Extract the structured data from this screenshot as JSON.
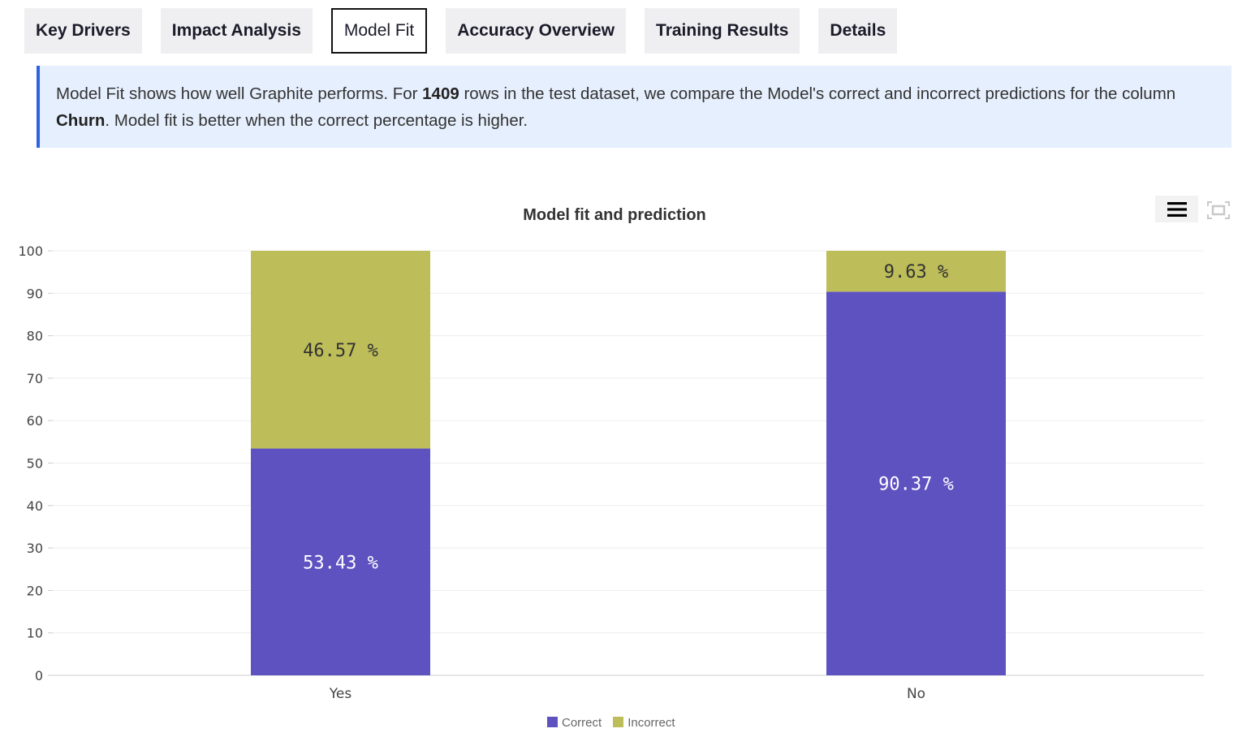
{
  "tabs": [
    {
      "label": "Key Drivers",
      "active": false
    },
    {
      "label": "Impact Analysis",
      "active": false
    },
    {
      "label": "Model Fit",
      "active": true
    },
    {
      "label": "Accuracy Overview",
      "active": false
    },
    {
      "label": "Training Results",
      "active": false
    },
    {
      "label": "Details",
      "active": false
    }
  ],
  "info": {
    "p1": "Model Fit shows how well Graphite performs. For ",
    "rows": "1409",
    "p2": " rows in the test dataset, we compare the Model's correct and incorrect predictions for the column ",
    "column": "Churn",
    "p3": ". Model fit is better when the correct percentage is higher."
  },
  "toolbar": {
    "menu_icon": "hamburger-menu-icon",
    "fullscreen_icon": "fullscreen-icon"
  },
  "colors": {
    "correct": "#5e52c0",
    "incorrect": "#bdbd5a",
    "accent": "#2f62e0"
  },
  "chart_data": {
    "type": "bar",
    "stacked": true,
    "title": "Model fit and prediction",
    "categories": [
      "Yes",
      "No"
    ],
    "series": [
      {
        "name": "Correct",
        "values": [
          53.43,
          90.37
        ],
        "labels": [
          "53.43 %",
          "90.37 %"
        ]
      },
      {
        "name": "Incorrect",
        "values": [
          46.57,
          9.63
        ],
        "labels": [
          "46.57 %",
          "9.63 %"
        ]
      }
    ],
    "ylim": [
      0,
      100
    ],
    "yticks": [
      "0",
      "10",
      "20",
      "30",
      "40",
      "50",
      "60",
      "70",
      "80",
      "90",
      "100"
    ],
    "grid": true,
    "legend": "bottom-center",
    "xlabel": "",
    "ylabel": ""
  }
}
